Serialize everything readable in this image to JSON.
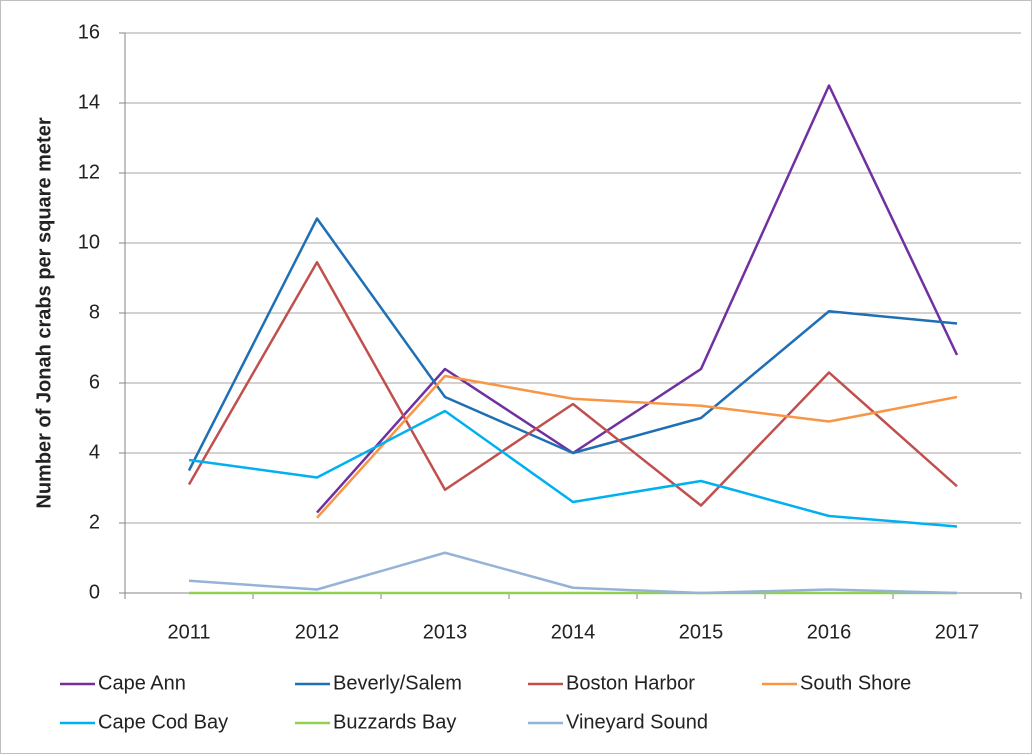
{
  "chart_data": {
    "type": "line",
    "y_label": "Number of Jonah crabs per square meter",
    "categories": [
      "2011",
      "2012",
      "2013",
      "2014",
      "2015",
      "2016",
      "2017"
    ],
    "series": [
      {
        "name": "Cape Ann",
        "color": "#7030a0",
        "values": [
          null,
          2.3,
          6.4,
          4.0,
          6.4,
          14.5,
          6.8
        ]
      },
      {
        "name": "Beverly/Salem",
        "color": "#1f6fb5",
        "values": [
          3.5,
          10.7,
          5.6,
          4.0,
          5.0,
          8.05,
          7.7
        ]
      },
      {
        "name": "Boston Harbor",
        "color": "#c0504d",
        "values": [
          3.1,
          9.45,
          2.95,
          5.4,
          2.5,
          6.3,
          3.05
        ]
      },
      {
        "name": "South Shore",
        "color": "#f79646",
        "values": [
          null,
          2.15,
          6.2,
          5.55,
          5.35,
          4.9,
          5.6
        ]
      },
      {
        "name": "Cape Cod Bay",
        "color": "#00b0f0",
        "values": [
          3.8,
          3.3,
          5.2,
          2.6,
          3.2,
          2.2,
          1.9
        ]
      },
      {
        "name": "Buzzards Bay",
        "color": "#92d050",
        "values": [
          0,
          0,
          0,
          0,
          0,
          0,
          0
        ]
      },
      {
        "name": "Vineyard Sound",
        "color": "#95b3d7",
        "values": [
          0.35,
          0.1,
          1.15,
          0.15,
          0,
          0.1,
          0
        ]
      }
    ],
    "ylim": [
      0,
      16
    ],
    "yticks": [
      0,
      2,
      4,
      6,
      8,
      10,
      12,
      14,
      16
    ],
    "grid": true
  }
}
